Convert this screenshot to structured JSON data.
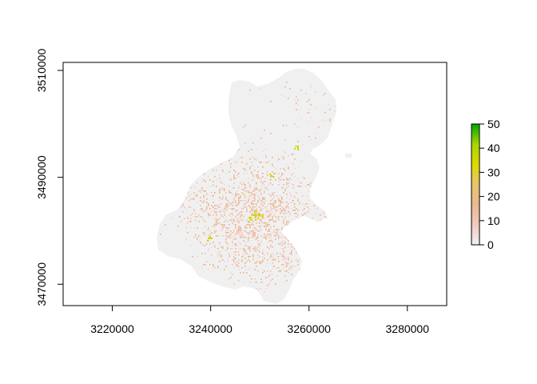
{
  "chart_data": {
    "type": "heatmap",
    "title": "",
    "xlabel": "",
    "ylabel": "",
    "xlim": [
      3210000,
      3288000
    ],
    "ylim": [
      3466000,
      3511500
    ],
    "x_ticks": [
      3220000,
      3240000,
      3260000,
      3280000
    ],
    "x_tick_labels": [
      "3220000",
      "3240000",
      "3260000",
      "3280000"
    ],
    "y_ticks": [
      3470000,
      3490000,
      3510000
    ],
    "y_tick_labels": [
      "3470000",
      "3490000",
      "3510000"
    ],
    "legend": {
      "placement": "right",
      "min": 0,
      "max": 50,
      "ticks": [
        0,
        10,
        20,
        30,
        40,
        50
      ],
      "tick_labels": [
        "0",
        "10",
        "20",
        "30",
        "40",
        "50"
      ],
      "colors": [
        "#f2f2f2",
        "#f0c9c0",
        "#ebb98e",
        "#e6c56d",
        "#dfd900",
        "#a8d600",
        "#00a600"
      ]
    },
    "background_color": "#f0f0f0",
    "grid": false
  }
}
